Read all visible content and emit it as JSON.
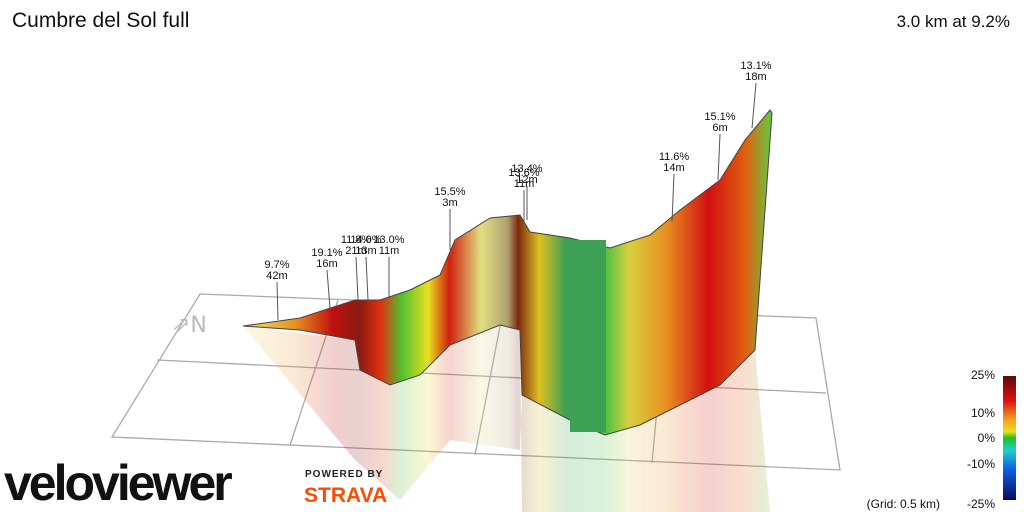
{
  "header": {
    "title": "Cumbre del Sol full",
    "summary": "3.0 km at 9.2%"
  },
  "annotations": [
    {
      "grade": "9.7%",
      "length": "42m"
    },
    {
      "grade": "19.1%",
      "length": "16m"
    },
    {
      "grade": "11.8%",
      "length": "21m"
    },
    {
      "grade": "14.0%",
      "length": "13m"
    },
    {
      "grade": "13.0%",
      "length": "11m"
    },
    {
      "grade": "15.5%",
      "length": "3m"
    },
    {
      "grade": "13.4%",
      "length": "12m"
    },
    {
      "grade": "13.6%",
      "length": "11m"
    },
    {
      "grade": "11.6%",
      "length": "14m"
    },
    {
      "grade": "15.1%",
      "length": "6m"
    },
    {
      "grade": "13.1%",
      "length": "18m"
    }
  ],
  "legend": {
    "labels": [
      "25%",
      "10%",
      "0%",
      "-10%",
      "-25%"
    ],
    "grid_note": "(Grid: 0.5 km)"
  },
  "branding": {
    "logo": "veloviewer",
    "powered_by": "POWERED BY",
    "partner": "STRAVA"
  }
}
